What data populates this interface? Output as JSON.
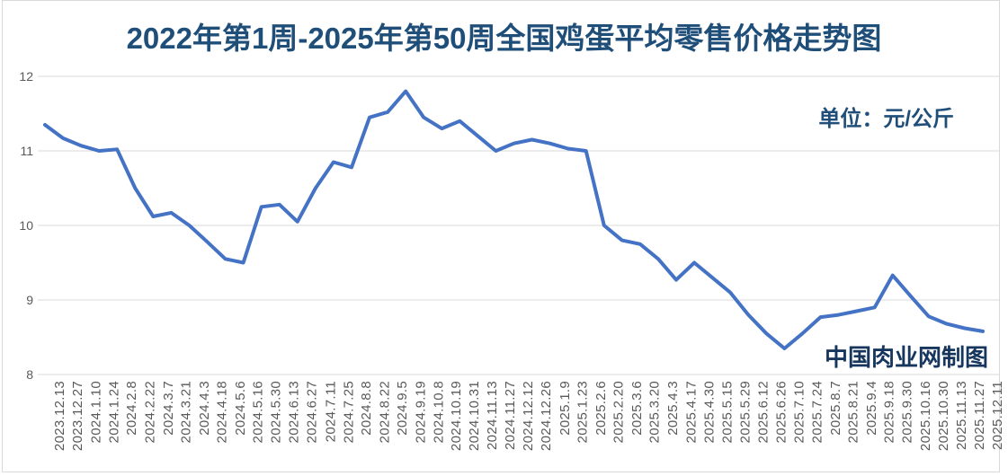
{
  "title": "2022年第1周-2025年第50周全国鸡蛋平均零售价格走势图",
  "unit_label": "单位：元/公斤",
  "watermark": "中国肉业网制图",
  "colors": {
    "line": "#4472c4",
    "title_text": "#1f4e79",
    "watermark_text": "#17365d",
    "axis_text": "#595959",
    "gridline": "#d9d9d9"
  },
  "chart_data": {
    "type": "line",
    "title": "2022年第1周-2025年第50周全国鸡蛋平均零售价格走势图",
    "ylabel": "元/公斤",
    "ylim": [
      8,
      12
    ],
    "yticks": [
      12,
      11,
      10,
      9,
      8
    ],
    "grid": true,
    "legend": "none",
    "categories": [
      "2023.12.13",
      "2023.12.27",
      "2024.1.10",
      "2024.1.24",
      "2024.2.8",
      "2024.2.22",
      "2024.3.7",
      "2024.3.21",
      "2024.4.3",
      "2024.4.18",
      "2024.5.6",
      "2024.5.16",
      "2024.5.30",
      "2024.6.13",
      "2024.6.27",
      "2024.7.11",
      "2024.7.25",
      "2024.8.8",
      "2024.8.22",
      "2024.9.5",
      "2024.9.19",
      "2024.10.8",
      "2024.10.19",
      "2024.10.31",
      "2024.11.13",
      "2024.11.27",
      "2024.12.12",
      "2024.12.26",
      "2025.1.9",
      "2025.1.23",
      "2025.2.6",
      "2025.2.20",
      "2025.3.6",
      "2025.3.20",
      "2025.4.3",
      "2025.4.17",
      "2025.4.30",
      "2025.5.15",
      "2025.5.29",
      "2025.6.12",
      "2025.6.26",
      "2025.7.10",
      "2025.7.24",
      "2025.8.7",
      "2025.8.21",
      "2025.9.4",
      "2025.9.18",
      "2025.9.30",
      "2025.10.16",
      "2025.10.30",
      "2025.11.13",
      "2025.11.27",
      "2025.12.11"
    ],
    "values": [
      11.35,
      11.17,
      11.07,
      11.0,
      11.02,
      10.5,
      10.12,
      10.17,
      10.0,
      9.78,
      9.55,
      9.5,
      10.25,
      10.28,
      10.05,
      10.5,
      10.85,
      10.78,
      11.45,
      11.52,
      11.8,
      11.45,
      11.3,
      11.4,
      11.2,
      11.0,
      11.1,
      11.15,
      11.1,
      11.03,
      11.0,
      10.0,
      9.8,
      9.75,
      9.55,
      9.27,
      9.5,
      9.3,
      9.1,
      8.8,
      8.55,
      8.35,
      8.55,
      8.77,
      8.8,
      8.85,
      8.9,
      9.33,
      9.05,
      8.78,
      8.68,
      8.62,
      8.58
    ]
  }
}
